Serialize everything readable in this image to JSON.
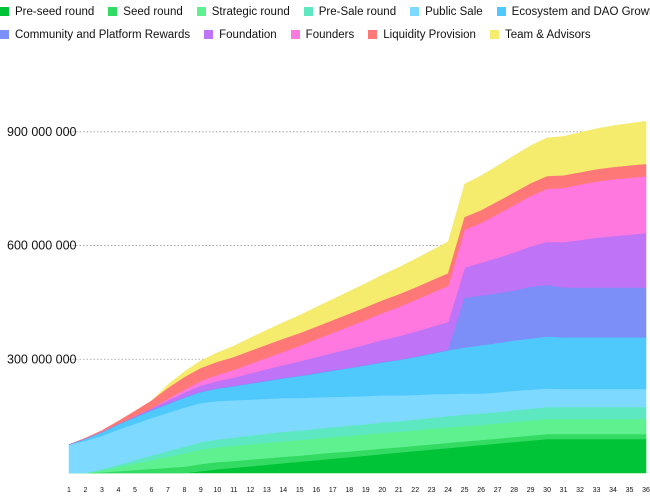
{
  "chart_data": {
    "type": "area",
    "stacked": true,
    "title": "",
    "xlabel": "",
    "ylabel": "",
    "ylim": [
      0,
      1100000000
    ],
    "yticks": [
      300000000,
      600000000,
      900000000
    ],
    "ytick_labels": [
      "300 000 000",
      "600 000 000",
      "900 000 000"
    ],
    "grid": "horizontal dotted",
    "legend": "top",
    "x": [
      1,
      2,
      3,
      4,
      5,
      6,
      7,
      8,
      9,
      10,
      11,
      12,
      13,
      14,
      15,
      16,
      17,
      18,
      19,
      20,
      21,
      22,
      23,
      24,
      25,
      26,
      27,
      28,
      29,
      30,
      31,
      32,
      33,
      34,
      35,
      36
    ],
    "series": [
      {
        "name": "Pre-seed round",
        "color": "#00c437",
        "values": [
          0,
          0,
          0,
          0,
          0,
          0,
          0,
          0,
          5000000,
          10000000,
          14000000,
          18000000,
          22000000,
          26000000,
          30000000,
          34000000,
          38000000,
          42000000,
          46000000,
          50000000,
          54000000,
          58000000,
          62000000,
          66000000,
          70000000,
          74000000,
          78000000,
          82000000,
          86000000,
          90000000,
          90000000,
          90000000,
          90000000,
          90000000,
          90000000,
          90000000
        ]
      },
      {
        "name": "Seed round",
        "color": "#34db63",
        "values": [
          0,
          0,
          2000000,
          5000000,
          8000000,
          11000000,
          14000000,
          17000000,
          19000000,
          19000000,
          18000000,
          18000000,
          17000000,
          17000000,
          16000000,
          16000000,
          16000000,
          15000000,
          15000000,
          15000000,
          14000000,
          14000000,
          14000000,
          14000000,
          14000000,
          13000000,
          13000000,
          13000000,
          13000000,
          13000000,
          13000000,
          13000000,
          13000000,
          13000000,
          13000000,
          13000000
        ]
      },
      {
        "name": "Strategic round",
        "color": "#5ff08f",
        "values": [
          0,
          0,
          5000000,
          11000000,
          17000000,
          23000000,
          29000000,
          35000000,
          38000000,
          39000000,
          40000000,
          40000000,
          41000000,
          41000000,
          41000000,
          41000000,
          41000000,
          41000000,
          41000000,
          41000000,
          41000000,
          41000000,
          41000000,
          41000000,
          40000000,
          40000000,
          40000000,
          40000000,
          40000000,
          40000000,
          40000000,
          40000000,
          40000000,
          40000000,
          40000000,
          40000000
        ]
      },
      {
        "name": "Pre-Sale round",
        "color": "#5ee8c1",
        "values": [
          0,
          0,
          3000000,
          6000000,
          9000000,
          12000000,
          15000000,
          18000000,
          20000000,
          21000000,
          22000000,
          23000000,
          24000000,
          25000000,
          25000000,
          26000000,
          26000000,
          27000000,
          27000000,
          28000000,
          28000000,
          28000000,
          29000000,
          29000000,
          30000000,
          30000000,
          30000000,
          31000000,
          31000000,
          31000000,
          31000000,
          31000000,
          31000000,
          31000000,
          31000000,
          31000000
        ]
      },
      {
        "name": "Public Sale",
        "color": "#7dd9ff",
        "values": [
          75000000,
          85000000,
          88000000,
          93000000,
          96000000,
          99000000,
          101000000,
          103000000,
          103000000,
          101000000,
          98000000,
          95000000,
          92000000,
          89000000,
          86000000,
          83000000,
          80000000,
          77000000,
          74000000,
          71000000,
          68000000,
          65000000,
          62000000,
          59000000,
          56000000,
          53000000,
          52000000,
          51000000,
          50000000,
          49000000,
          48000000,
          48000000,
          48000000,
          48000000,
          48000000,
          48000000
        ]
      },
      {
        "name": "Ecosystem and DAO Growth",
        "color": "#4fc8fb",
        "values": [
          0,
          5000000,
          10000000,
          14000000,
          17000000,
          20000000,
          23000000,
          26000000,
          29000000,
          33000000,
          37000000,
          42000000,
          47000000,
          52000000,
          58000000,
          63000000,
          69000000,
          75000000,
          81000000,
          87000000,
          93000000,
          100000000,
          107000000,
          115000000,
          121000000,
          127000000,
          130000000,
          133000000,
          135000000,
          137000000,
          136000000,
          136000000,
          136000000,
          136000000,
          136000000,
          136000000
        ]
      },
      {
        "name": "Community and Platform Rewards",
        "color": "#7c8ef8",
        "values": [
          0,
          0,
          0,
          0,
          0,
          0,
          0,
          0,
          0,
          0,
          0,
          0,
          0,
          0,
          0,
          0,
          0,
          0,
          0,
          0,
          0,
          0,
          0,
          0,
          130000000,
          130000000,
          130000000,
          130000000,
          135000000,
          135000000,
          130000000,
          130000000,
          130000000,
          130000000,
          130000000,
          130000000
        ]
      },
      {
        "name": "Foundation",
        "color": "#bf73f6",
        "values": [
          0,
          0,
          0,
          0,
          3000000,
          6000000,
          10000000,
          13000000,
          17000000,
          20000000,
          23000000,
          27000000,
          31000000,
          35000000,
          39000000,
          43000000,
          47000000,
          51000000,
          55000000,
          59000000,
          63000000,
          67000000,
          71000000,
          75000000,
          81000000,
          88000000,
          95000000,
          102000000,
          108000000,
          115000000,
          121000000,
          127000000,
          133000000,
          137000000,
          141000000,
          145000000
        ]
      },
      {
        "name": "Founders",
        "color": "#ff78e0",
        "values": [
          0,
          0,
          0,
          0,
          0,
          0,
          4000000,
          8000000,
          12000000,
          16000000,
          20000000,
          25000000,
          30000000,
          35000000,
          41000000,
          47000000,
          53000000,
          59000000,
          65000000,
          71000000,
          77000000,
          83000000,
          89000000,
          95000000,
          100000000,
          105000000,
          115000000,
          125000000,
          133000000,
          140000000,
          143000000,
          146000000,
          148000000,
          150000000,
          150000000,
          150000000
        ]
      },
      {
        "name": "Liquidity Provision",
        "color": "#ff7878",
        "values": [
          0,
          2000000,
          4000000,
          8000000,
          13000000,
          19000000,
          27000000,
          32000000,
          33000000,
          33000000,
          33000000,
          33000000,
          33000000,
          33000000,
          32000000,
          32000000,
          32000000,
          32000000,
          32000000,
          32000000,
          32000000,
          32000000,
          32000000,
          32000000,
          32000000,
          32000000,
          32000000,
          32000000,
          32000000,
          32000000,
          32000000,
          31000000,
          31000000,
          31000000,
          31000000,
          31000000
        ]
      },
      {
        "name": "Team & Advisors",
        "color": "#f5eb6d",
        "values": [
          0,
          0,
          0,
          0,
          0,
          0,
          10000000,
          15000000,
          20000000,
          25000000,
          30000000,
          35000000,
          40000000,
          44000000,
          48000000,
          52000000,
          56000000,
          60000000,
          64000000,
          68000000,
          72000000,
          76000000,
          80000000,
          84000000,
          88000000,
          92000000,
          95000000,
          98000000,
          100000000,
          102000000,
          104000000,
          106000000,
          108000000,
          110000000,
          112000000,
          114000000
        ]
      }
    ],
    "draw_order": [
      0,
      1,
      2,
      3,
      4,
      5,
      7,
      8,
      10,
      9,
      6
    ]
  }
}
